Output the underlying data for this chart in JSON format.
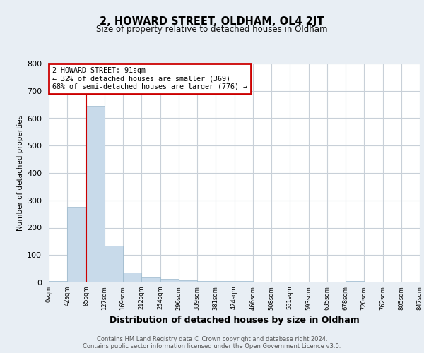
{
  "title": "2, HOWARD STREET, OLDHAM, OL4 2JT",
  "subtitle": "Size of property relative to detached houses in Oldham",
  "xlabel": "Distribution of detached houses by size in Oldham",
  "ylabel": "Number of detached properties",
  "bin_labels": [
    "0sqm",
    "42sqm",
    "85sqm",
    "127sqm",
    "169sqm",
    "212sqm",
    "254sqm",
    "296sqm",
    "339sqm",
    "381sqm",
    "424sqm",
    "466sqm",
    "508sqm",
    "551sqm",
    "593sqm",
    "635sqm",
    "678sqm",
    "720sqm",
    "762sqm",
    "805sqm",
    "847sqm"
  ],
  "bar_values": [
    5,
    275,
    645,
    135,
    35,
    18,
    12,
    8,
    5,
    5,
    5,
    0,
    0,
    0,
    0,
    0,
    5,
    0,
    0,
    0
  ],
  "bar_color": "#c8daea",
  "bar_edge_color": "#9ab8cc",
  "vline_x": 2.0,
  "vline_color": "#cc0000",
  "annotation_text": "2 HOWARD STREET: 91sqm\n← 32% of detached houses are smaller (369)\n68% of semi-detached houses are larger (776) →",
  "annotation_box_color": "#cc0000",
  "ylim": [
    0,
    800
  ],
  "yticks": [
    0,
    100,
    200,
    300,
    400,
    500,
    600,
    700,
    800
  ],
  "footer": "Contains HM Land Registry data © Crown copyright and database right 2024.\nContains public sector information licensed under the Open Government Licence v3.0.",
  "bg_color": "#e8eef4",
  "plot_bg_color": "#ffffff",
  "grid_color": "#c8d0d8"
}
